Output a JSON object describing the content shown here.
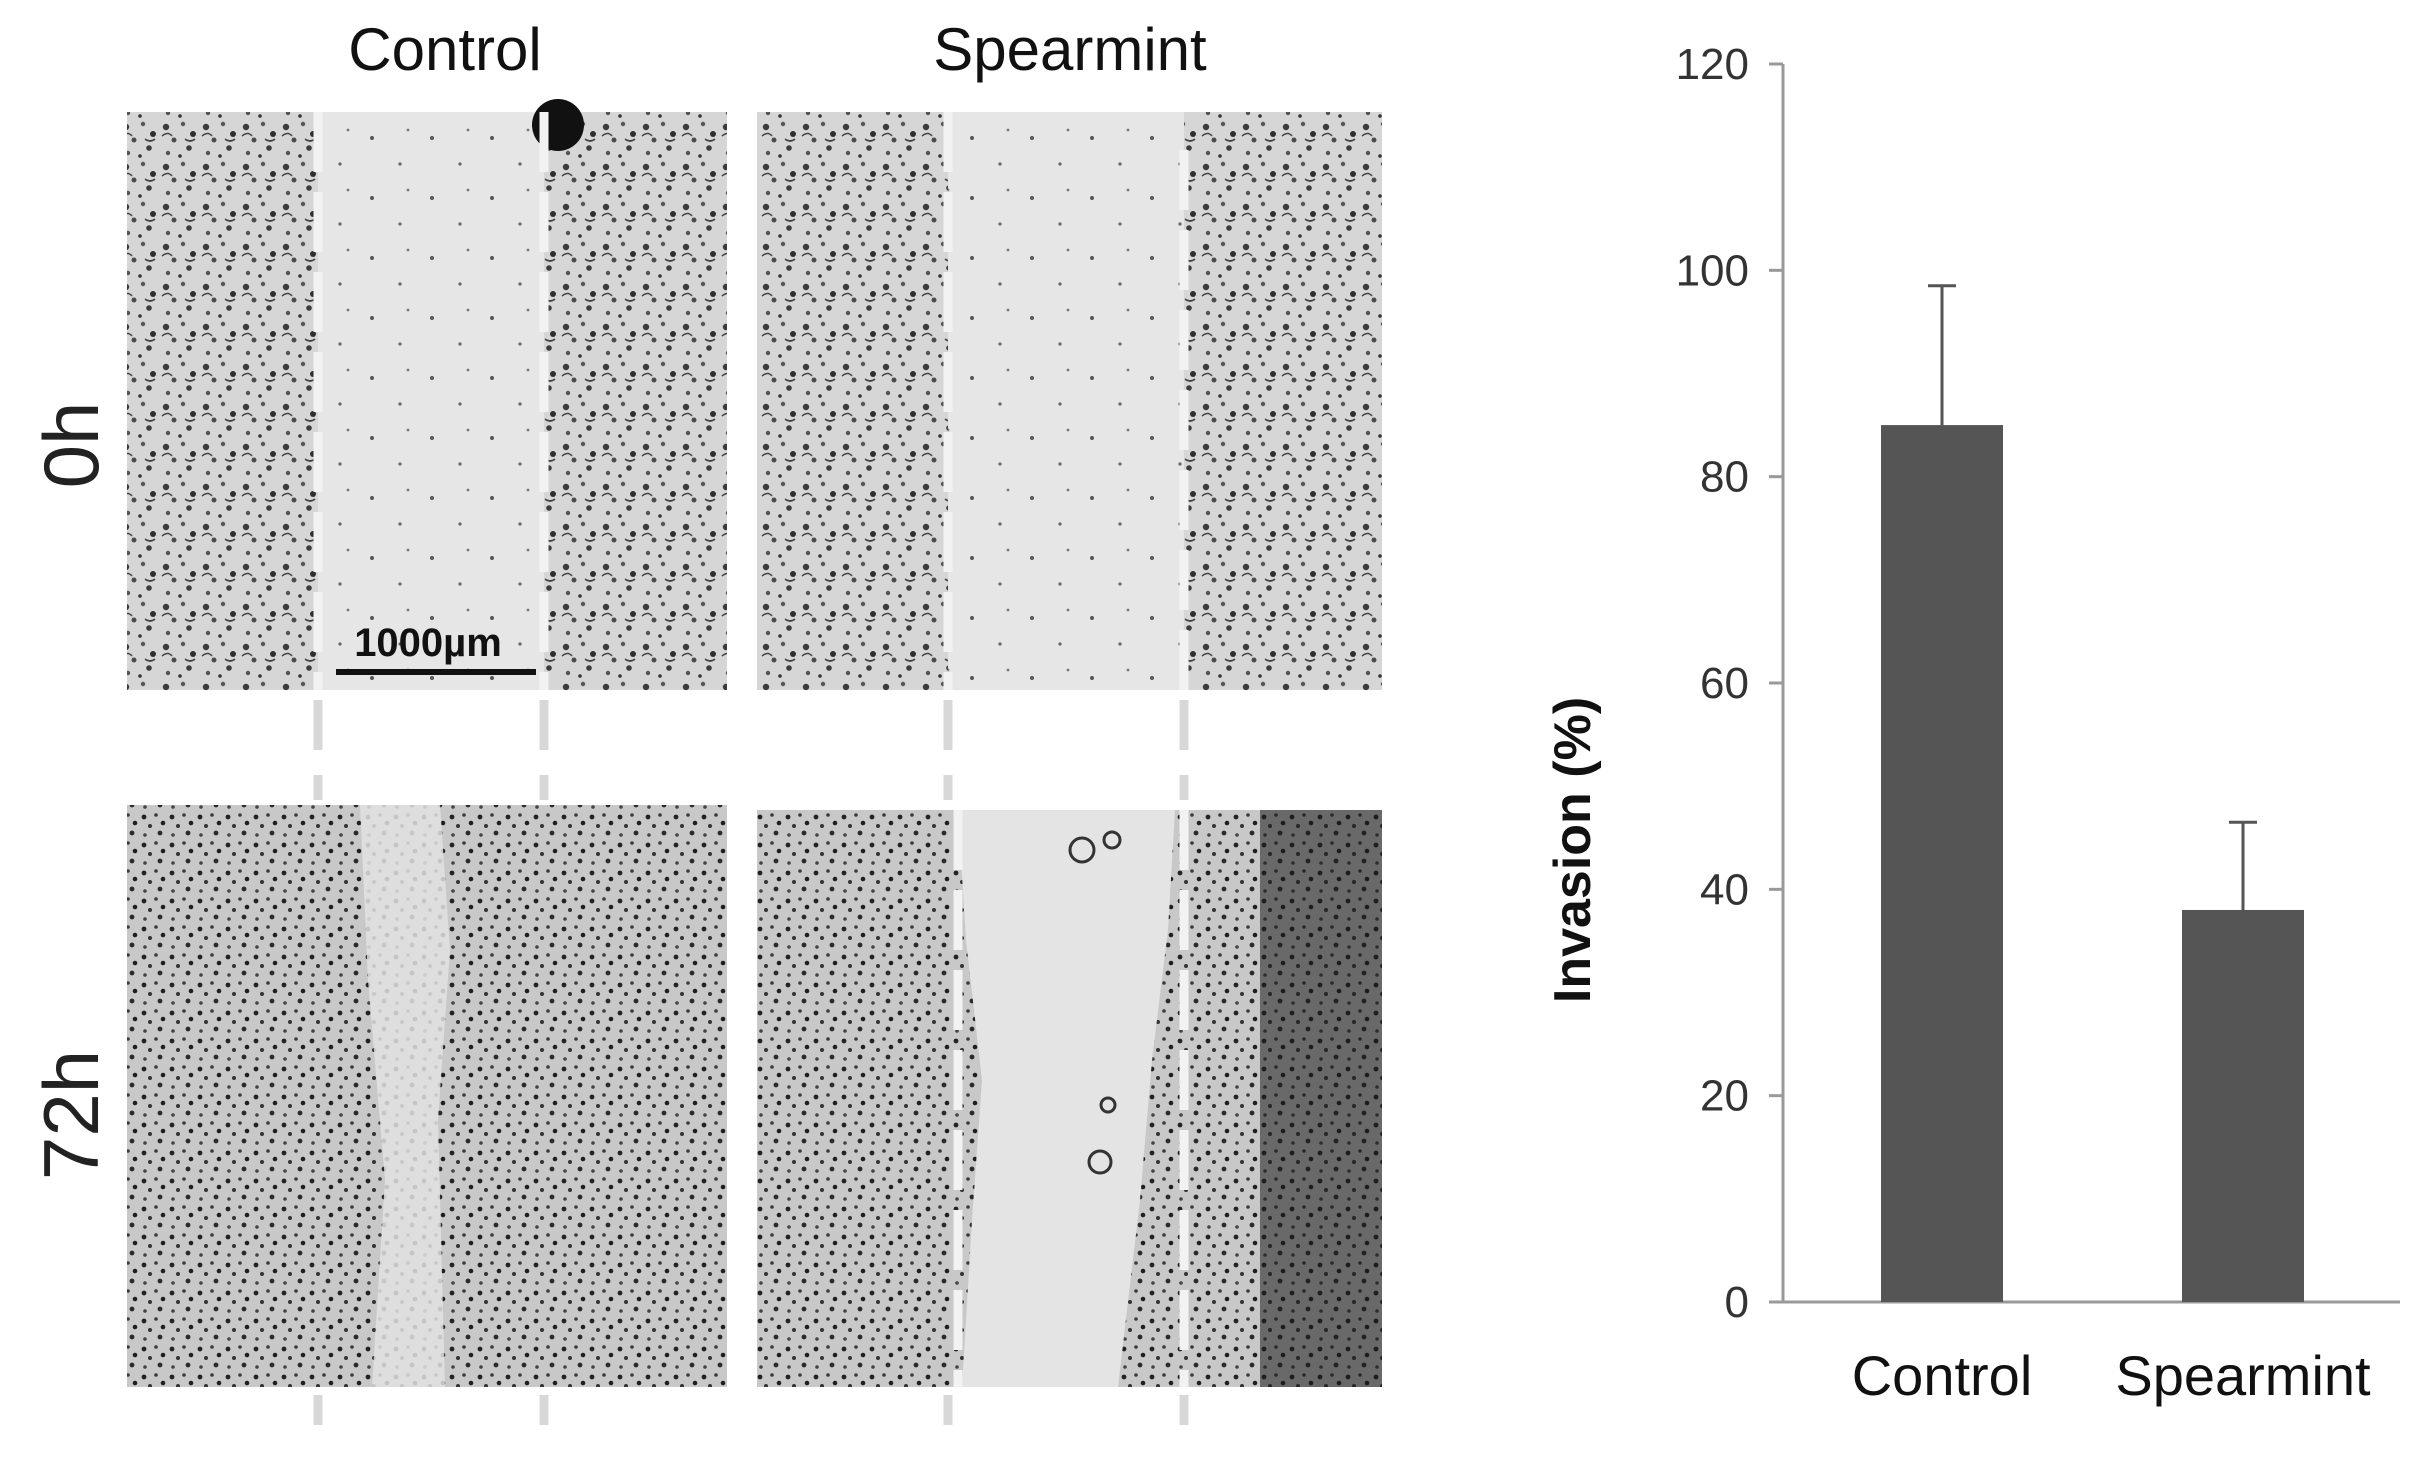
{
  "micrographs": {
    "columns": [
      "Control",
      "Spearmint"
    ],
    "rows": [
      "0h",
      "72h"
    ],
    "scale_bar": "1000µm"
  },
  "chart_data": {
    "type": "bar",
    "categories": [
      "Control",
      "Spearmint"
    ],
    "values": [
      85,
      38
    ],
    "errors": [
      13.5,
      8.5
    ],
    "ylabel": "Invasion (%)",
    "ylim": [
      0,
      120
    ],
    "yticks": [
      0,
      20,
      40,
      60,
      80,
      100,
      120
    ],
    "grid": false,
    "bar_color": "#555555"
  }
}
